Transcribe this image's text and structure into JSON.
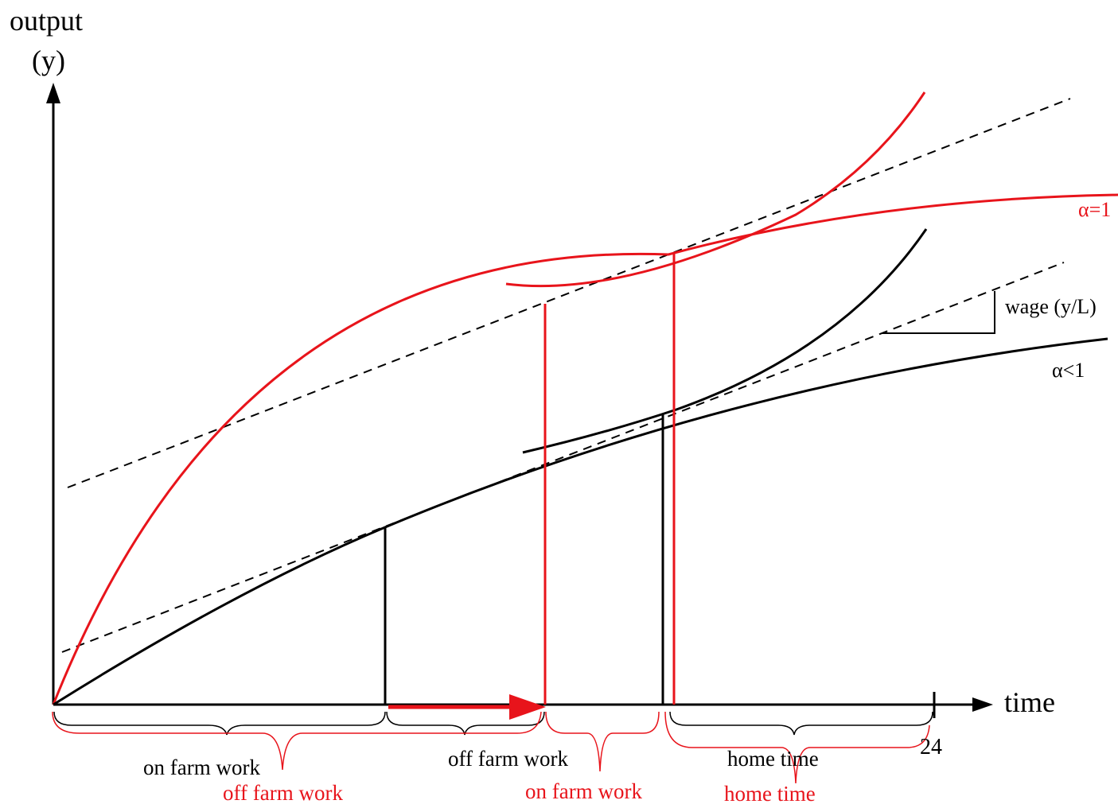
{
  "colors": {
    "black": "#000000",
    "red": "#e8141b"
  },
  "axes": {
    "y_label_line1": "output",
    "y_label_line2": "(y)",
    "x_label": "time",
    "x_end_tick": "24"
  },
  "curves": {
    "red_label": "α=1",
    "black_label": "α<1"
  },
  "wage_label": "wage (y/L)",
  "brackets": {
    "black": {
      "on_farm": "on farm work",
      "off_farm": "off farm work",
      "home": "home time"
    },
    "red": {
      "off_farm": "off farm work",
      "on_farm": "on farm work",
      "home": "home time"
    }
  }
}
